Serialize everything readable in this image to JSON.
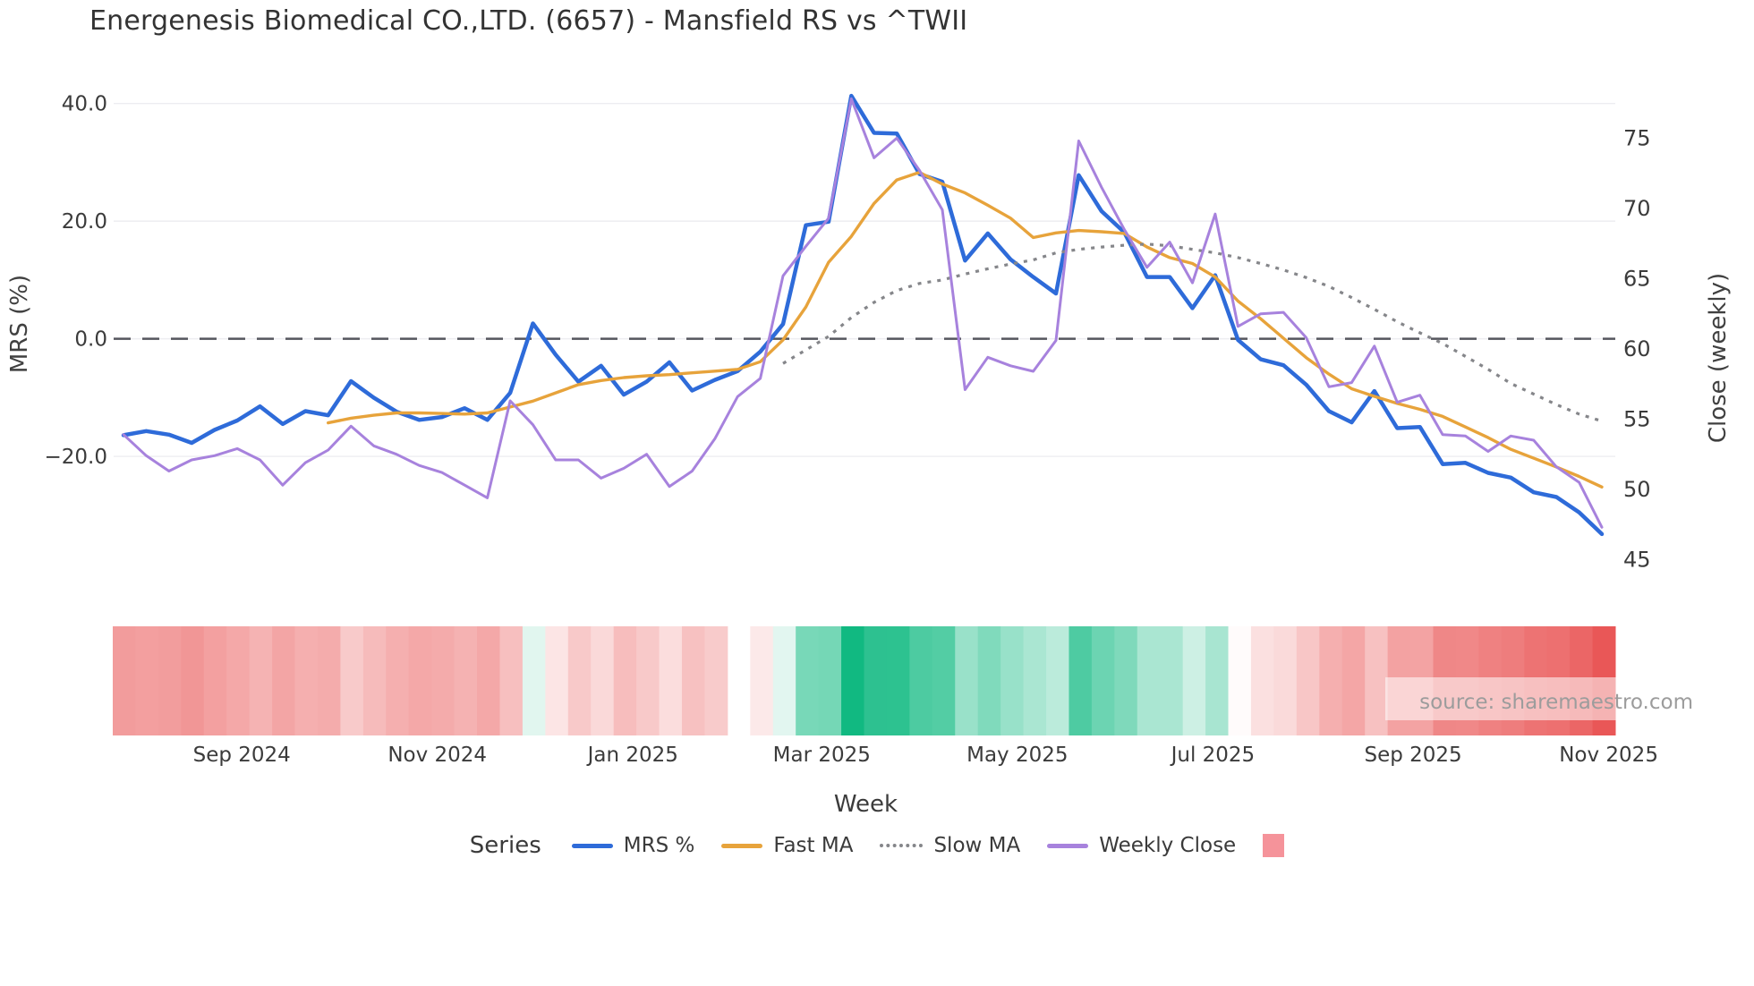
{
  "title": "Energenesis Biomedical CO.,LTD. (6657) - Mansfield RS vs ^TWII",
  "watermark": "source: sharemaestro.com",
  "colors": {
    "mrs_line": "#2e6bd9",
    "fast_ma": "#e7a33b",
    "slow_ma": "#85868a",
    "weekly_close": "#a782dd",
    "zero_line": "#54555d",
    "grid": "#ededf1",
    "tick_text": "#3b3b3b",
    "axis_label_text": "#404040",
    "title_text": "#333333",
    "watermark_text": "#9c9c9c",
    "heat_positive": "#10b981",
    "heat_negative": "#e84d4d",
    "legend_square": "#f5939a"
  },
  "legend": {
    "series_label": "Series",
    "items": [
      {
        "label": "MRS %",
        "swatch": "line",
        "color": "#2e6bd9"
      },
      {
        "label": "Fast MA",
        "swatch": "line",
        "color": "#e7a33b"
      },
      {
        "label": "Slow MA",
        "swatch": "dotted",
        "color": "#85868a"
      },
      {
        "label": "Weekly Close",
        "swatch": "line",
        "color": "#a782dd"
      },
      {
        "label": "",
        "swatch": "square",
        "color": "#f5939a"
      }
    ]
  },
  "chart_data": {
    "type": "line",
    "title": "Energenesis Biomedical CO.,LTD. (6657) - Mansfield RS vs ^TWII",
    "xlabel": "Week",
    "ylabel_left": "MRS (%)",
    "ylabel_right": "Close (weekly)",
    "grid": true,
    "legend_position": "bottom",
    "n_weeks": 66,
    "ylim_left": [
      -42.8,
      43.9
    ],
    "ylim_right": [
      42.8,
      79.1
    ],
    "y_left_ticks": [
      {
        "value": 40,
        "label": "40.0"
      },
      {
        "value": 20,
        "label": "20.0"
      },
      {
        "value": 0,
        "label": "0.0"
      },
      {
        "value": -20,
        "label": "−20.0"
      }
    ],
    "y_right_ticks": [
      {
        "value": 75,
        "label": "75"
      },
      {
        "value": 70,
        "label": "70"
      },
      {
        "value": 65,
        "label": "65"
      },
      {
        "value": 60,
        "label": "60"
      },
      {
        "value": 55,
        "label": "55"
      },
      {
        "value": 50,
        "label": "50"
      },
      {
        "value": 45,
        "label": "45"
      }
    ],
    "zero_reference_line": 0,
    "x_ticks": [
      {
        "label": "Sep 2024",
        "week": 5.2
      },
      {
        "label": "Nov 2024",
        "week": 13.8
      },
      {
        "label": "Jan 2025",
        "week": 22.4
      },
      {
        "label": "Mar 2025",
        "week": 30.7
      },
      {
        "label": "May 2025",
        "week": 39.3
      },
      {
        "label": "Jul 2025",
        "week": 47.9
      },
      {
        "label": "Sep 2025",
        "week": 56.7
      },
      {
        "label": "Nov 2025",
        "week": 65.3
      }
    ],
    "series": [
      {
        "name": "MRS %",
        "axis": "left",
        "style": "solid",
        "width": 4.5,
        "color": "#2e6bd9",
        "values": [
          -16.4,
          -15.7,
          -16.3,
          -17.7,
          -15.5,
          -13.9,
          -11.5,
          -14.5,
          -12.3,
          -13.0,
          -7.2,
          -10.0,
          -12.4,
          -13.8,
          -13.3,
          -11.8,
          -13.8,
          -9.2,
          2.6,
          -2.7,
          -7.3,
          -4.6,
          -9.5,
          -7.3,
          -4.0,
          -8.8,
          -7.0,
          -5.5,
          -2.2,
          2.5,
          19.3,
          19.9,
          41.3,
          35.0,
          34.9,
          28.0,
          26.7,
          13.3,
          17.9,
          13.5,
          10.5,
          7.7,
          27.8,
          21.7,
          18.1,
          10.5,
          10.5,
          5.2,
          10.8,
          -0.2,
          -3.5,
          -4.5,
          -7.8,
          -12.3,
          -14.2,
          -8.9,
          -15.2,
          -15.0,
          -21.3,
          -21.1,
          -22.8,
          -23.6,
          -26.1,
          -26.9,
          -29.5,
          -33.2
        ]
      },
      {
        "name": "Fast MA",
        "axis": "left",
        "style": "solid",
        "width": 3.4,
        "color": "#e7a33b",
        "values": [
          null,
          null,
          null,
          null,
          null,
          null,
          null,
          null,
          null,
          -14.3,
          -13.5,
          -13.0,
          -12.6,
          -12.6,
          -12.7,
          -12.8,
          -12.6,
          -11.6,
          -10.6,
          -9.2,
          -7.8,
          -7.1,
          -6.6,
          -6.3,
          -6.1,
          -5.8,
          -5.5,
          -5.2,
          -3.9,
          -0.2,
          5.4,
          13.0,
          17.4,
          23.0,
          27.0,
          28.3,
          26.3,
          24.8,
          22.7,
          20.5,
          17.2,
          18.0,
          18.4,
          18.2,
          17.9,
          15.6,
          13.8,
          12.8,
          10.5,
          6.4,
          3.4,
          0.1,
          -3.2,
          -6.0,
          -8.5,
          -9.8,
          -11.0,
          -12.0,
          -13.2,
          -15.0,
          -16.8,
          -18.8,
          -20.3,
          -21.8,
          -23.4,
          -25.2
        ]
      },
      {
        "name": "Slow MA",
        "axis": "left",
        "style": "dotted",
        "width": 3.2,
        "color": "#85868a",
        "values": [
          null,
          null,
          null,
          null,
          null,
          null,
          null,
          null,
          null,
          null,
          null,
          null,
          null,
          null,
          null,
          null,
          null,
          null,
          null,
          null,
          null,
          null,
          null,
          null,
          null,
          null,
          null,
          null,
          null,
          -4.2,
          -1.9,
          0.4,
          3.6,
          6.2,
          8.2,
          9.4,
          10.0,
          11.0,
          11.9,
          12.7,
          13.4,
          14.6,
          15.2,
          15.6,
          15.9,
          16.1,
          15.8,
          15.2,
          14.6,
          13.8,
          12.8,
          11.7,
          10.4,
          8.9,
          7.0,
          5.0,
          2.9,
          1.0,
          -0.8,
          -3.0,
          -5.2,
          -7.6,
          -9.4,
          -11.2,
          -12.8,
          -14.0
        ]
      },
      {
        "name": "Weekly Close",
        "axis": "right",
        "style": "solid",
        "width": 3.0,
        "color": "#a782dd",
        "values": [
          53.9,
          52.4,
          51.3,
          52.1,
          52.4,
          52.9,
          52.1,
          50.3,
          51.9,
          52.8,
          54.5,
          53.1,
          52.5,
          51.7,
          51.2,
          50.3,
          49.4,
          56.3,
          54.6,
          52.1,
          52.1,
          50.8,
          51.5,
          52.5,
          50.2,
          51.3,
          53.6,
          56.6,
          57.9,
          65.2,
          67.3,
          69.3,
          77.8,
          73.6,
          75.0,
          72.7,
          69.9,
          57.1,
          59.4,
          58.8,
          58.4,
          60.6,
          74.8,
          71.5,
          68.5,
          65.8,
          67.6,
          64.7,
          69.6,
          61.6,
          62.5,
          62.6,
          60.8,
          57.3,
          57.6,
          60.2,
          56.2,
          56.7,
          53.9,
          53.8,
          52.7,
          53.8,
          53.5,
          51.6,
          50.5,
          47.3
        ]
      }
    ],
    "heatmap": {
      "type": "heatmap",
      "description": "weekly MRS % strip, red negative to green positive",
      "source_series": "MRS %",
      "gap_week_indices": [
        27
      ],
      "vmax_positive": 41.5,
      "vmax_negative": 36,
      "color_positive": "#10b981",
      "color_negative": "#e84d4d"
    }
  }
}
